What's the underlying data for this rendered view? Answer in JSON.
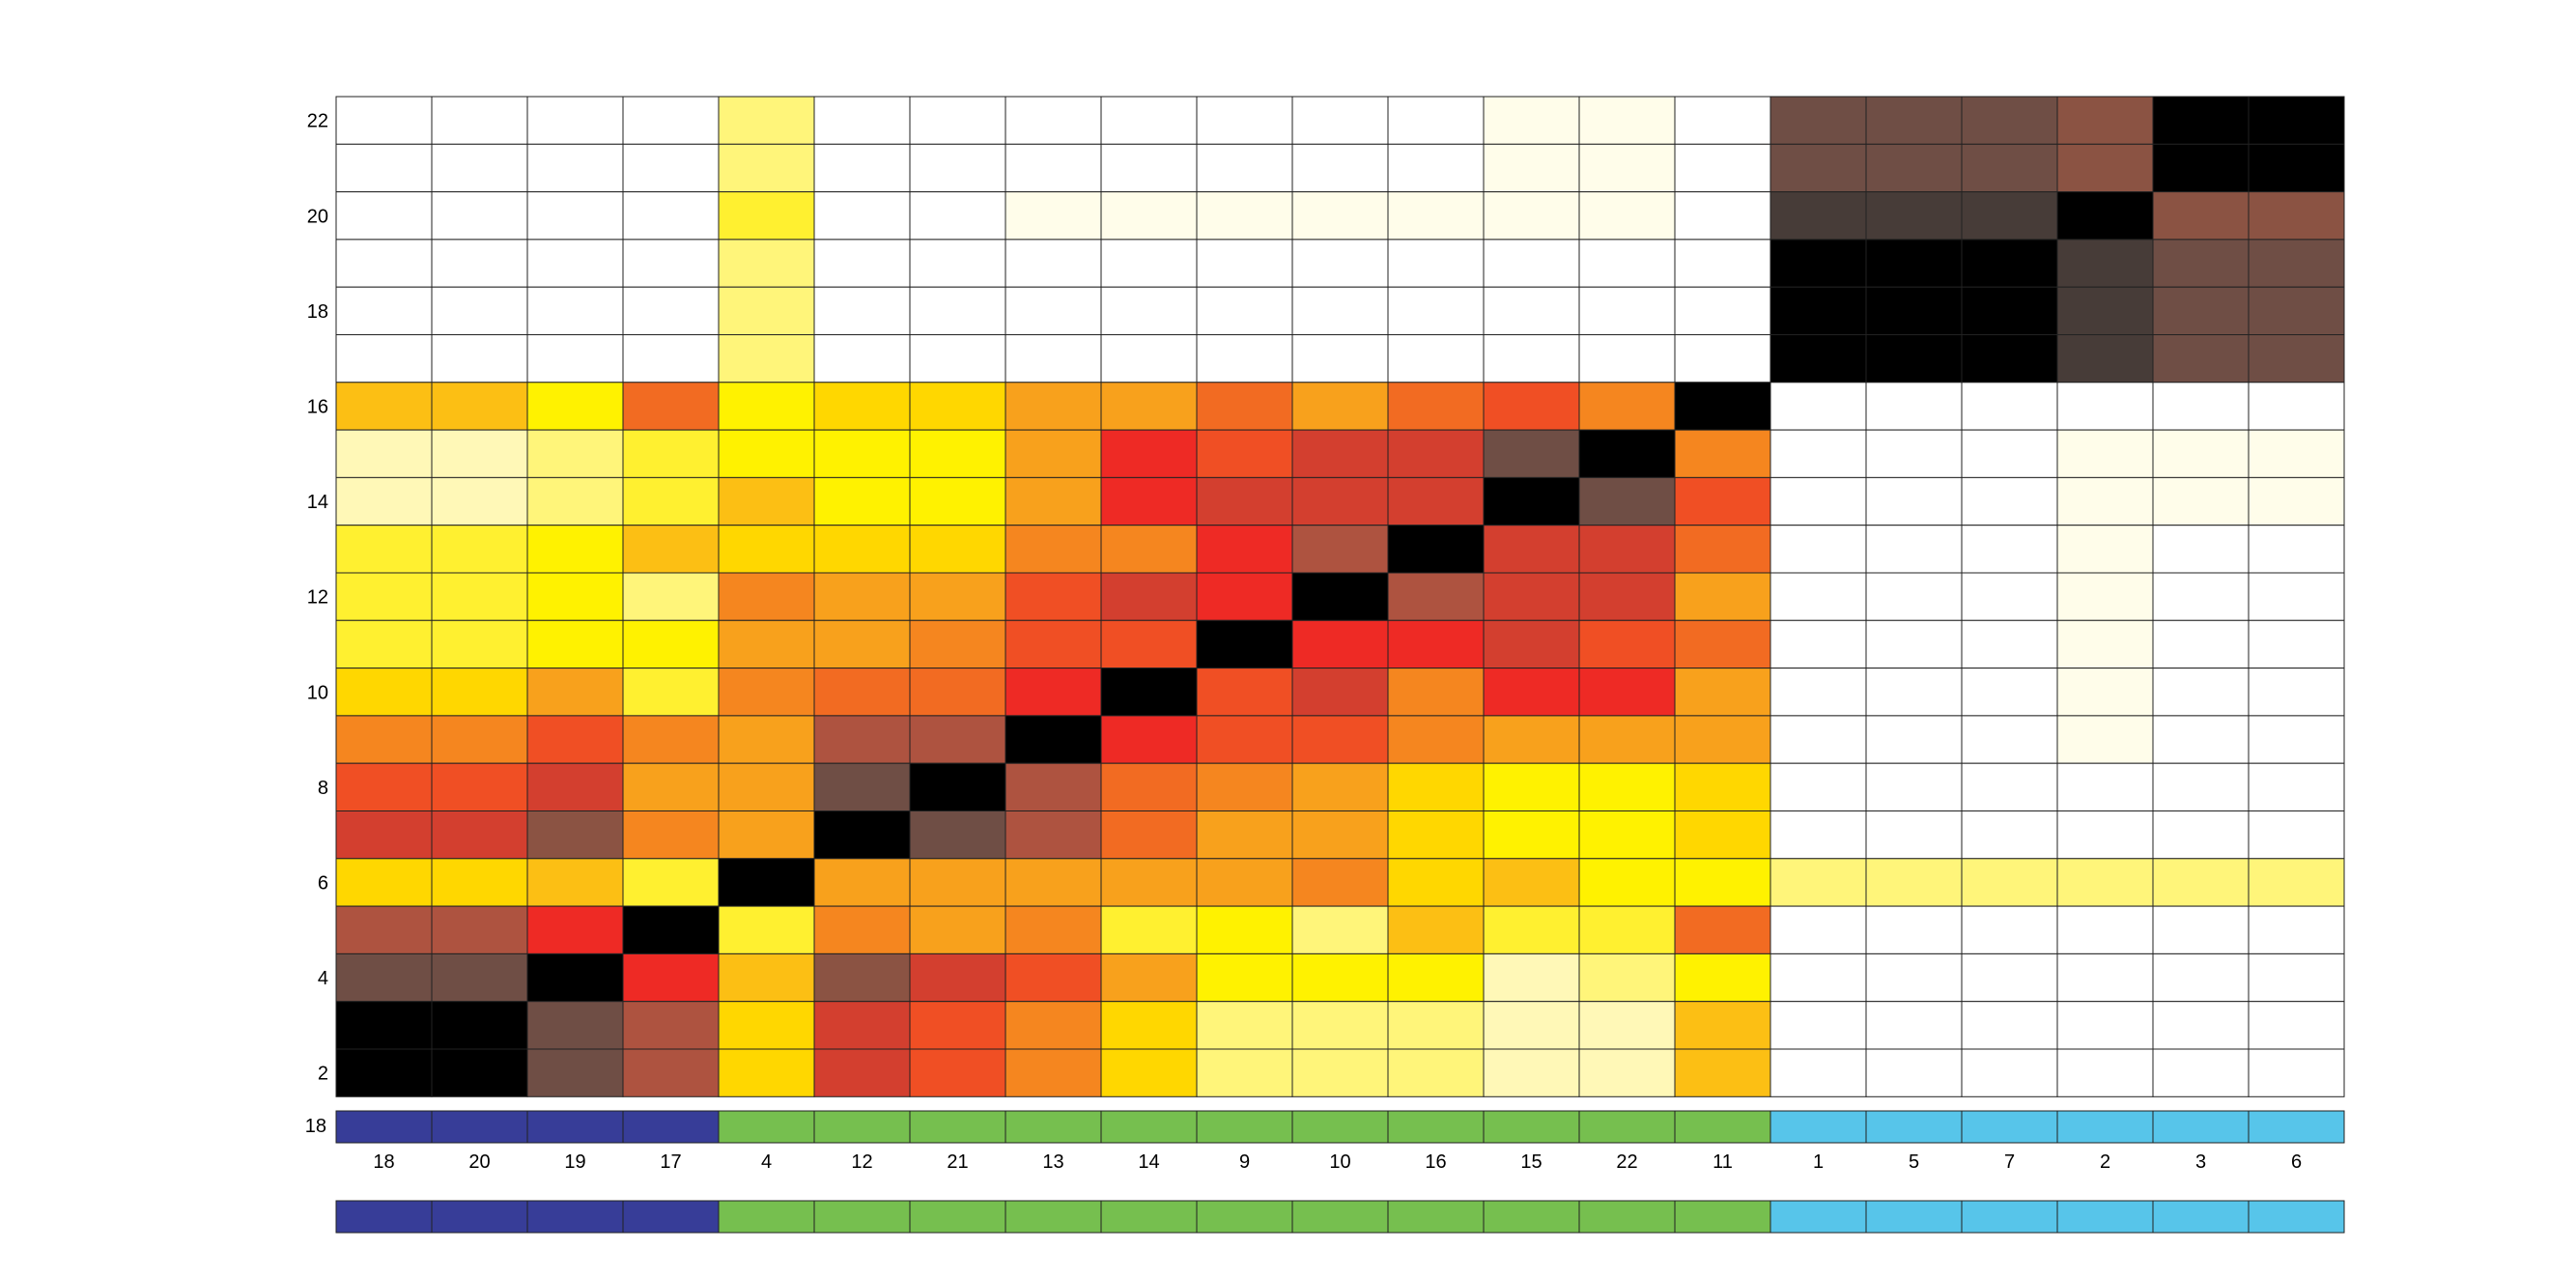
{
  "chart_data": {
    "type": "heatmap",
    "column_order": [
      "18",
      "20",
      "19",
      "17",
      "4",
      "12",
      "21",
      "13",
      "14",
      "9",
      "10",
      "16",
      "15",
      "22",
      "11",
      "1",
      "5",
      "7",
      "2",
      "3",
      "6"
    ],
    "y_ticks": [
      "2",
      "4",
      "6",
      "8",
      "10",
      "12",
      "14",
      "16",
      "18",
      "20",
      "22"
    ],
    "y_range": [
      1,
      22
    ],
    "color_bar_label": "18",
    "group_colors": {
      "A": "#373d98",
      "B": "#76bf4f",
      "C": "#57c5ea"
    },
    "column_groups": [
      "A",
      "A",
      "A",
      "A",
      "B",
      "B",
      "B",
      "B",
      "B",
      "B",
      "B",
      "B",
      "B",
      "B",
      "B",
      "C",
      "C",
      "C",
      "C",
      "C",
      "C"
    ],
    "palette": {
      "K": "#000000",
      "D": "#473c38",
      "M": "#6f4e45",
      "R": "#8b5343",
      "S": "#ae5340",
      "E": "#d33f2f",
      "F": "#ee2a25",
      "O": "#f04f24",
      "P": "#f26b22",
      "Q": "#f5861f",
      "G": "#f8a11c",
      "H": "#fcbf14",
      "Y": "#ffd700",
      "U": "#fff200",
      "V": "#fff030",
      "L": "#fff57a",
      "C": "#fff8b7",
      "N": "#fffdea",
      "W": "#ffffff"
    },
    "rows_top_to_bottom": [
      [
        "W",
        "W",
        "W",
        "W",
        "L",
        "W",
        "W",
        "W",
        "W",
        "W",
        "W",
        "W",
        "N",
        "N",
        "W",
        "M",
        "M",
        "M",
        "R",
        "K",
        "K"
      ],
      [
        "W",
        "W",
        "W",
        "W",
        "L",
        "W",
        "W",
        "W",
        "W",
        "W",
        "W",
        "W",
        "N",
        "N",
        "W",
        "M",
        "M",
        "M",
        "R",
        "K",
        "K"
      ],
      [
        "W",
        "W",
        "W",
        "W",
        "V",
        "W",
        "W",
        "N",
        "N",
        "N",
        "N",
        "N",
        "N",
        "N",
        "W",
        "D",
        "D",
        "D",
        "K",
        "R",
        "R"
      ],
      [
        "W",
        "W",
        "W",
        "W",
        "L",
        "W",
        "W",
        "W",
        "W",
        "W",
        "W",
        "W",
        "W",
        "W",
        "W",
        "K",
        "K",
        "K",
        "D",
        "M",
        "M"
      ],
      [
        "W",
        "W",
        "W",
        "W",
        "L",
        "W",
        "W",
        "W",
        "W",
        "W",
        "W",
        "W",
        "W",
        "W",
        "W",
        "K",
        "K",
        "K",
        "D",
        "M",
        "M"
      ],
      [
        "W",
        "W",
        "W",
        "W",
        "L",
        "W",
        "W",
        "W",
        "W",
        "W",
        "W",
        "W",
        "W",
        "W",
        "W",
        "K",
        "K",
        "K",
        "D",
        "M",
        "M"
      ],
      [
        "H",
        "H",
        "U",
        "P",
        "U",
        "Y",
        "Y",
        "G",
        "G",
        "P",
        "G",
        "P",
        "O",
        "Q",
        "K",
        "W",
        "W",
        "W",
        "W",
        "W",
        "W"
      ],
      [
        "C",
        "C",
        "L",
        "V",
        "U",
        "U",
        "U",
        "G",
        "F",
        "O",
        "E",
        "E",
        "M",
        "K",
        "Q",
        "W",
        "W",
        "W",
        "N",
        "N",
        "N"
      ],
      [
        "C",
        "C",
        "L",
        "V",
        "H",
        "U",
        "U",
        "G",
        "F",
        "E",
        "E",
        "E",
        "K",
        "M",
        "O",
        "W",
        "W",
        "W",
        "N",
        "N",
        "N"
      ],
      [
        "V",
        "V",
        "U",
        "H",
        "Y",
        "Y",
        "Y",
        "Q",
        "Q",
        "F",
        "S",
        "K",
        "E",
        "E",
        "P",
        "W",
        "W",
        "W",
        "N",
        "W",
        "W"
      ],
      [
        "V",
        "V",
        "U",
        "L",
        "Q",
        "G",
        "G",
        "O",
        "E",
        "F",
        "K",
        "S",
        "E",
        "E",
        "G",
        "W",
        "W",
        "W",
        "N",
        "W",
        "W"
      ],
      [
        "V",
        "V",
        "U",
        "U",
        "G",
        "G",
        "Q",
        "O",
        "O",
        "K",
        "F",
        "F",
        "E",
        "O",
        "P",
        "W",
        "W",
        "W",
        "N",
        "W",
        "W"
      ],
      [
        "Y",
        "Y",
        "G",
        "V",
        "Q",
        "P",
        "P",
        "F",
        "K",
        "O",
        "E",
        "Q",
        "F",
        "F",
        "G",
        "W",
        "W",
        "W",
        "N",
        "W",
        "W"
      ],
      [
        "Q",
        "Q",
        "O",
        "Q",
        "G",
        "S",
        "S",
        "K",
        "F",
        "O",
        "O",
        "Q",
        "G",
        "G",
        "G",
        "W",
        "W",
        "W",
        "N",
        "W",
        "W"
      ],
      [
        "O",
        "O",
        "E",
        "G",
        "G",
        "M",
        "K",
        "S",
        "P",
        "Q",
        "G",
        "Y",
        "U",
        "U",
        "Y",
        "W",
        "W",
        "W",
        "W",
        "W",
        "W"
      ],
      [
        "E",
        "E",
        "R",
        "Q",
        "G",
        "K",
        "M",
        "S",
        "P",
        "G",
        "G",
        "Y",
        "U",
        "U",
        "Y",
        "W",
        "W",
        "W",
        "W",
        "W",
        "W"
      ],
      [
        "Y",
        "Y",
        "H",
        "V",
        "K",
        "G",
        "G",
        "G",
        "G",
        "G",
        "Q",
        "Y",
        "H",
        "U",
        "U",
        "L",
        "L",
        "L",
        "L",
        "L",
        "L"
      ],
      [
        "S",
        "S",
        "F",
        "K",
        "V",
        "Q",
        "G",
        "Q",
        "V",
        "U",
        "L",
        "H",
        "V",
        "V",
        "P",
        "W",
        "W",
        "W",
        "W",
        "W",
        "W"
      ],
      [
        "M",
        "M",
        "K",
        "F",
        "H",
        "R",
        "E",
        "O",
        "G",
        "U",
        "U",
        "U",
        "C",
        "L",
        "U",
        "W",
        "W",
        "W",
        "W",
        "W",
        "W"
      ],
      [
        "K",
        "K",
        "M",
        "S",
        "Y",
        "E",
        "O",
        "Q",
        "Y",
        "L",
        "L",
        "L",
        "C",
        "C",
        "H",
        "W",
        "W",
        "W",
        "W",
        "W",
        "W"
      ],
      [
        "K",
        "K",
        "M",
        "S",
        "Y",
        "E",
        "O",
        "Q",
        "Y",
        "L",
        "L",
        "L",
        "C",
        "C",
        "H",
        "W",
        "W",
        "W",
        "W",
        "W",
        "W"
      ]
    ]
  }
}
